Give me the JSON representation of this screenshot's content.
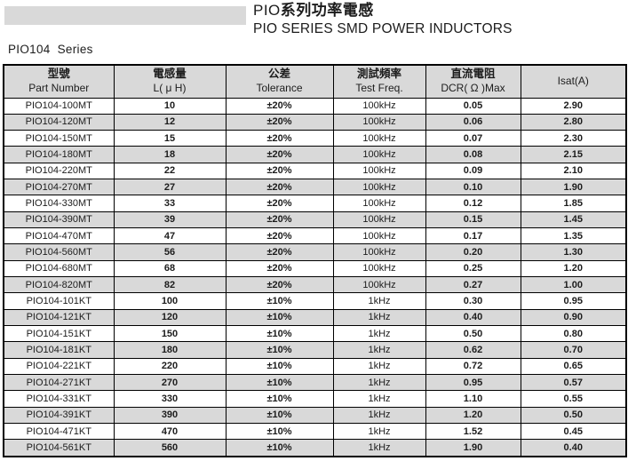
{
  "header": {
    "title_zh_prefix": "PIO",
    "title_zh_suffix": "系列功率電感",
    "title_en": "PIO SERIES SMD POWER INDUCTORS"
  },
  "series_label": "PIO104 Series",
  "table": {
    "columns": [
      {
        "zh": "型號",
        "en": "Part Number"
      },
      {
        "zh": "電感量",
        "en": "L( μ H)"
      },
      {
        "zh": "公差",
        "en": "Tolerance"
      },
      {
        "zh": "測試頻率",
        "en": "Test Freq."
      },
      {
        "zh": "直流電阻",
        "en": "DCR( Ω )Max"
      },
      {
        "zh": "",
        "en": "Isat(A)"
      }
    ],
    "rows": [
      [
        "PIO104-100MT",
        "10",
        "±20%",
        "100kHz",
        "0.05",
        "2.90"
      ],
      [
        "PIO104-120MT",
        "12",
        "±20%",
        "100kHz",
        "0.06",
        "2.80"
      ],
      [
        "PIO104-150MT",
        "15",
        "±20%",
        "100kHz",
        "0.07",
        "2.30"
      ],
      [
        "PIO104-180MT",
        "18",
        "±20%",
        "100kHz",
        "0.08",
        "2.15"
      ],
      [
        "PIO104-220MT",
        "22",
        "±20%",
        "100kHz",
        "0.09",
        "2.10"
      ],
      [
        "PIO104-270MT",
        "27",
        "±20%",
        "100kHz",
        "0.10",
        "1.90"
      ],
      [
        "PIO104-330MT",
        "33",
        "±20%",
        "100kHz",
        "0.12",
        "1.85"
      ],
      [
        "PIO104-390MT",
        "39",
        "±20%",
        "100kHz",
        "0.15",
        "1.45"
      ],
      [
        "PIO104-470MT",
        "47",
        "±20%",
        "100kHz",
        "0.17",
        "1.35"
      ],
      [
        "PIO104-560MT",
        "56",
        "±20%",
        "100kHz",
        "0.20",
        "1.30"
      ],
      [
        "PIO104-680MT",
        "68",
        "±20%",
        "100kHz",
        "0.25",
        "1.20"
      ],
      [
        "PIO104-820MT",
        "82",
        "±20%",
        "100kHz",
        "0.27",
        "1.00"
      ],
      [
        "PIO104-101KT",
        "100",
        "±10%",
        "1kHz",
        "0.30",
        "0.95"
      ],
      [
        "PIO104-121KT",
        "120",
        "±10%",
        "1kHz",
        "0.40",
        "0.90"
      ],
      [
        "PIO104-151KT",
        "150",
        "±10%",
        "1kHz",
        "0.50",
        "0.80"
      ],
      [
        "PIO104-181KT",
        "180",
        "±10%",
        "1kHz",
        "0.62",
        "0.70"
      ],
      [
        "PIO104-221KT",
        "220",
        "±10%",
        "1kHz",
        "0.72",
        "0.65"
      ],
      [
        "PIO104-271KT",
        "270",
        "±10%",
        "1kHz",
        "0.95",
        "0.57"
      ],
      [
        "PIO104-331KT",
        "330",
        "±10%",
        "1kHz",
        "1.10",
        "0.55"
      ],
      [
        "PIO104-391KT",
        "390",
        "±10%",
        "1kHz",
        "1.20",
        "0.50"
      ],
      [
        "PIO104-471KT",
        "470",
        "±10%",
        "1kHz",
        "1.52",
        "0.45"
      ],
      [
        "PIO104-561KT",
        "560",
        "±10%",
        "1kHz",
        "1.90",
        "0.40"
      ]
    ]
  },
  "colors": {
    "header_bg": "#d9d9d9",
    "row_alt_bg": "#d9d9d9",
    "border": "#000000",
    "decoration_bar": "#d9d9d9"
  }
}
